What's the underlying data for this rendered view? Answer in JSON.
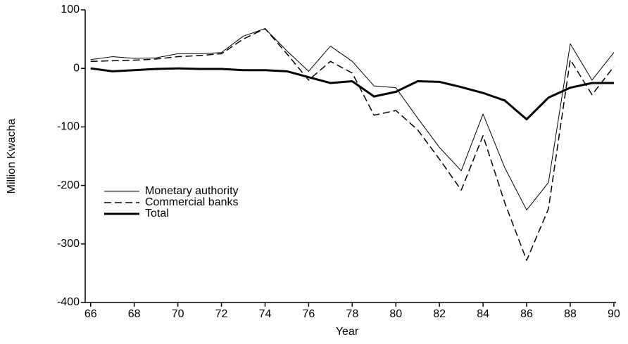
{
  "chart_data": {
    "type": "line",
    "x_label": "Year",
    "y_label": "Million Kwacha",
    "x": [
      66,
      67,
      68,
      69,
      70,
      71,
      72,
      73,
      74,
      75,
      76,
      77,
      78,
      79,
      80,
      81,
      82,
      83,
      84,
      85,
      86,
      87,
      88,
      89,
      90
    ],
    "series": [
      {
        "name": "Monetary authority",
        "color": "#000000",
        "line_style": "solid",
        "line_width": 1,
        "values": [
          15,
          20,
          17,
          18,
          25,
          25,
          27,
          55,
          68,
          30,
          -5,
          38,
          12,
          -30,
          -33,
          -85,
          -135,
          -175,
          -78,
          -170,
          -242,
          -195,
          42,
          -20,
          27
        ]
      },
      {
        "name": "Commercial banks",
        "color": "#000000",
        "line_style": "dashed",
        "line_width": 1.5,
        "values": [
          12,
          13,
          14,
          16,
          20,
          22,
          25,
          50,
          68,
          25,
          -20,
          12,
          -8,
          -80,
          -72,
          -105,
          -155,
          -208,
          -115,
          -230,
          -328,
          -240,
          15,
          -45,
          3
        ]
      },
      {
        "name": "Total",
        "color": "#000000",
        "line_style": "solid",
        "line_width": 3,
        "values": [
          0,
          -5,
          -3,
          -1,
          0,
          -1,
          -1,
          -3,
          -3,
          -5,
          -15,
          -25,
          -22,
          -48,
          -40,
          -22,
          -23,
          -32,
          -42,
          -55,
          -87,
          -50,
          -33,
          -25,
          -25
        ]
      }
    ],
    "xlim": [
      65.75,
      90.1
    ],
    "xticks": [
      66,
      68,
      70,
      72,
      74,
      76,
      78,
      80,
      82,
      84,
      86,
      88,
      90
    ],
    "ylim": [
      -400,
      100
    ],
    "yticks": [
      -400,
      -300,
      -200,
      -100,
      0,
      100
    ],
    "legend": "left"
  }
}
